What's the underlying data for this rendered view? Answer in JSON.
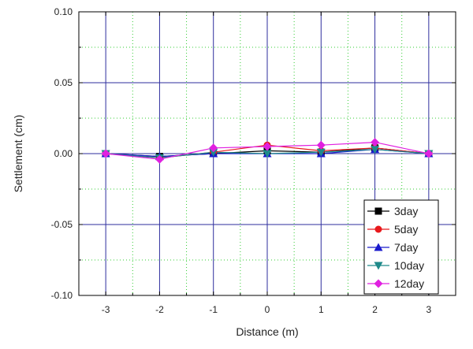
{
  "chart_data": {
    "type": "line",
    "title": "",
    "xlabel": "Distance (m)",
    "ylabel": "Settlement (cm)",
    "xlim": [
      -3.5,
      3.5
    ],
    "ylim": [
      -0.1,
      0.1
    ],
    "x_ticks": [
      -3,
      -2,
      -1,
      0,
      1,
      2,
      3
    ],
    "x_tick_labels": [
      "-3",
      "-2",
      "-1",
      "0",
      "1",
      "2",
      "3"
    ],
    "y_ticks": [
      -0.1,
      -0.05,
      0.0,
      0.05,
      0.1
    ],
    "y_tick_labels": [
      "-0.10",
      "-0.05",
      "0.00",
      "0.05",
      "0.10"
    ],
    "grid": true,
    "major_grid_color": "#2e2e9e",
    "minor_grid_color": "#33cc33",
    "legend_position": "bottom-right",
    "x": [
      -3,
      -2,
      -1,
      0,
      1,
      2,
      3
    ],
    "series": [
      {
        "name": "3day",
        "color": "#000000",
        "marker": "square",
        "values": [
          0.0,
          -0.002,
          0.0,
          0.002,
          0.001,
          0.004,
          0.0
        ]
      },
      {
        "name": "5day",
        "color": "#e8191c",
        "marker": "circle",
        "values": [
          0.0,
          -0.003,
          0.001,
          0.006,
          0.002,
          0.004,
          0.0
        ]
      },
      {
        "name": "7day",
        "color": "#1a1acc",
        "marker": "triangle-up",
        "values": [
          0.0,
          -0.002,
          0.0,
          0.0,
          0.0,
          0.003,
          0.0
        ]
      },
      {
        "name": "10day",
        "color": "#1f8a8a",
        "marker": "triangle-down",
        "values": [
          0.0,
          -0.003,
          0.001,
          0.0,
          0.001,
          0.003,
          0.0
        ]
      },
      {
        "name": "12day",
        "color": "#e020e0",
        "marker": "diamond",
        "values": [
          0.0,
          -0.004,
          0.004,
          0.005,
          0.006,
          0.008,
          0.0
        ]
      }
    ]
  }
}
